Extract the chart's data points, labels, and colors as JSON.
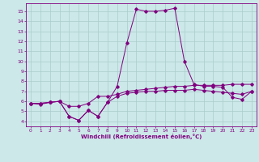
{
  "background_color": "#cce8e8",
  "grid_color": "#aacccc",
  "line_color": "#800080",
  "xlabel": "Windchill (Refroidissement éolien,°C)",
  "xlim": [
    -0.5,
    23.5
  ],
  "ylim": [
    3.5,
    15.8
  ],
  "xticks": [
    0,
    1,
    2,
    3,
    4,
    5,
    6,
    7,
    8,
    9,
    10,
    11,
    12,
    13,
    14,
    15,
    16,
    17,
    18,
    19,
    20,
    21,
    22,
    23
  ],
  "yticks": [
    4,
    5,
    6,
    7,
    8,
    9,
    10,
    11,
    12,
    13,
    14,
    15
  ],
  "series": [
    [
      5.8,
      5.7,
      5.9,
      6.0,
      5.5,
      5.5,
      5.8,
      6.5,
      6.5,
      6.7,
      7.0,
      7.1,
      7.2,
      7.3,
      7.4,
      7.5,
      7.5,
      7.6,
      7.6,
      7.6,
      7.6,
      7.7,
      7.7,
      7.7
    ],
    [
      5.8,
      5.8,
      5.9,
      6.0,
      4.5,
      4.1,
      5.1,
      4.5,
      5.9,
      6.5,
      6.8,
      6.9,
      7.0,
      7.0,
      7.1,
      7.1,
      7.1,
      7.2,
      7.1,
      7.0,
      6.9,
      6.8,
      6.7,
      7.0
    ],
    [
      5.8,
      5.8,
      5.9,
      6.0,
      4.5,
      4.1,
      5.1,
      4.5,
      5.9,
      7.5,
      11.8,
      15.2,
      15.0,
      15.0,
      15.1,
      15.3,
      10.0,
      7.7,
      7.5,
      7.5,
      7.4,
      6.4,
      6.2,
      7.0
    ]
  ]
}
